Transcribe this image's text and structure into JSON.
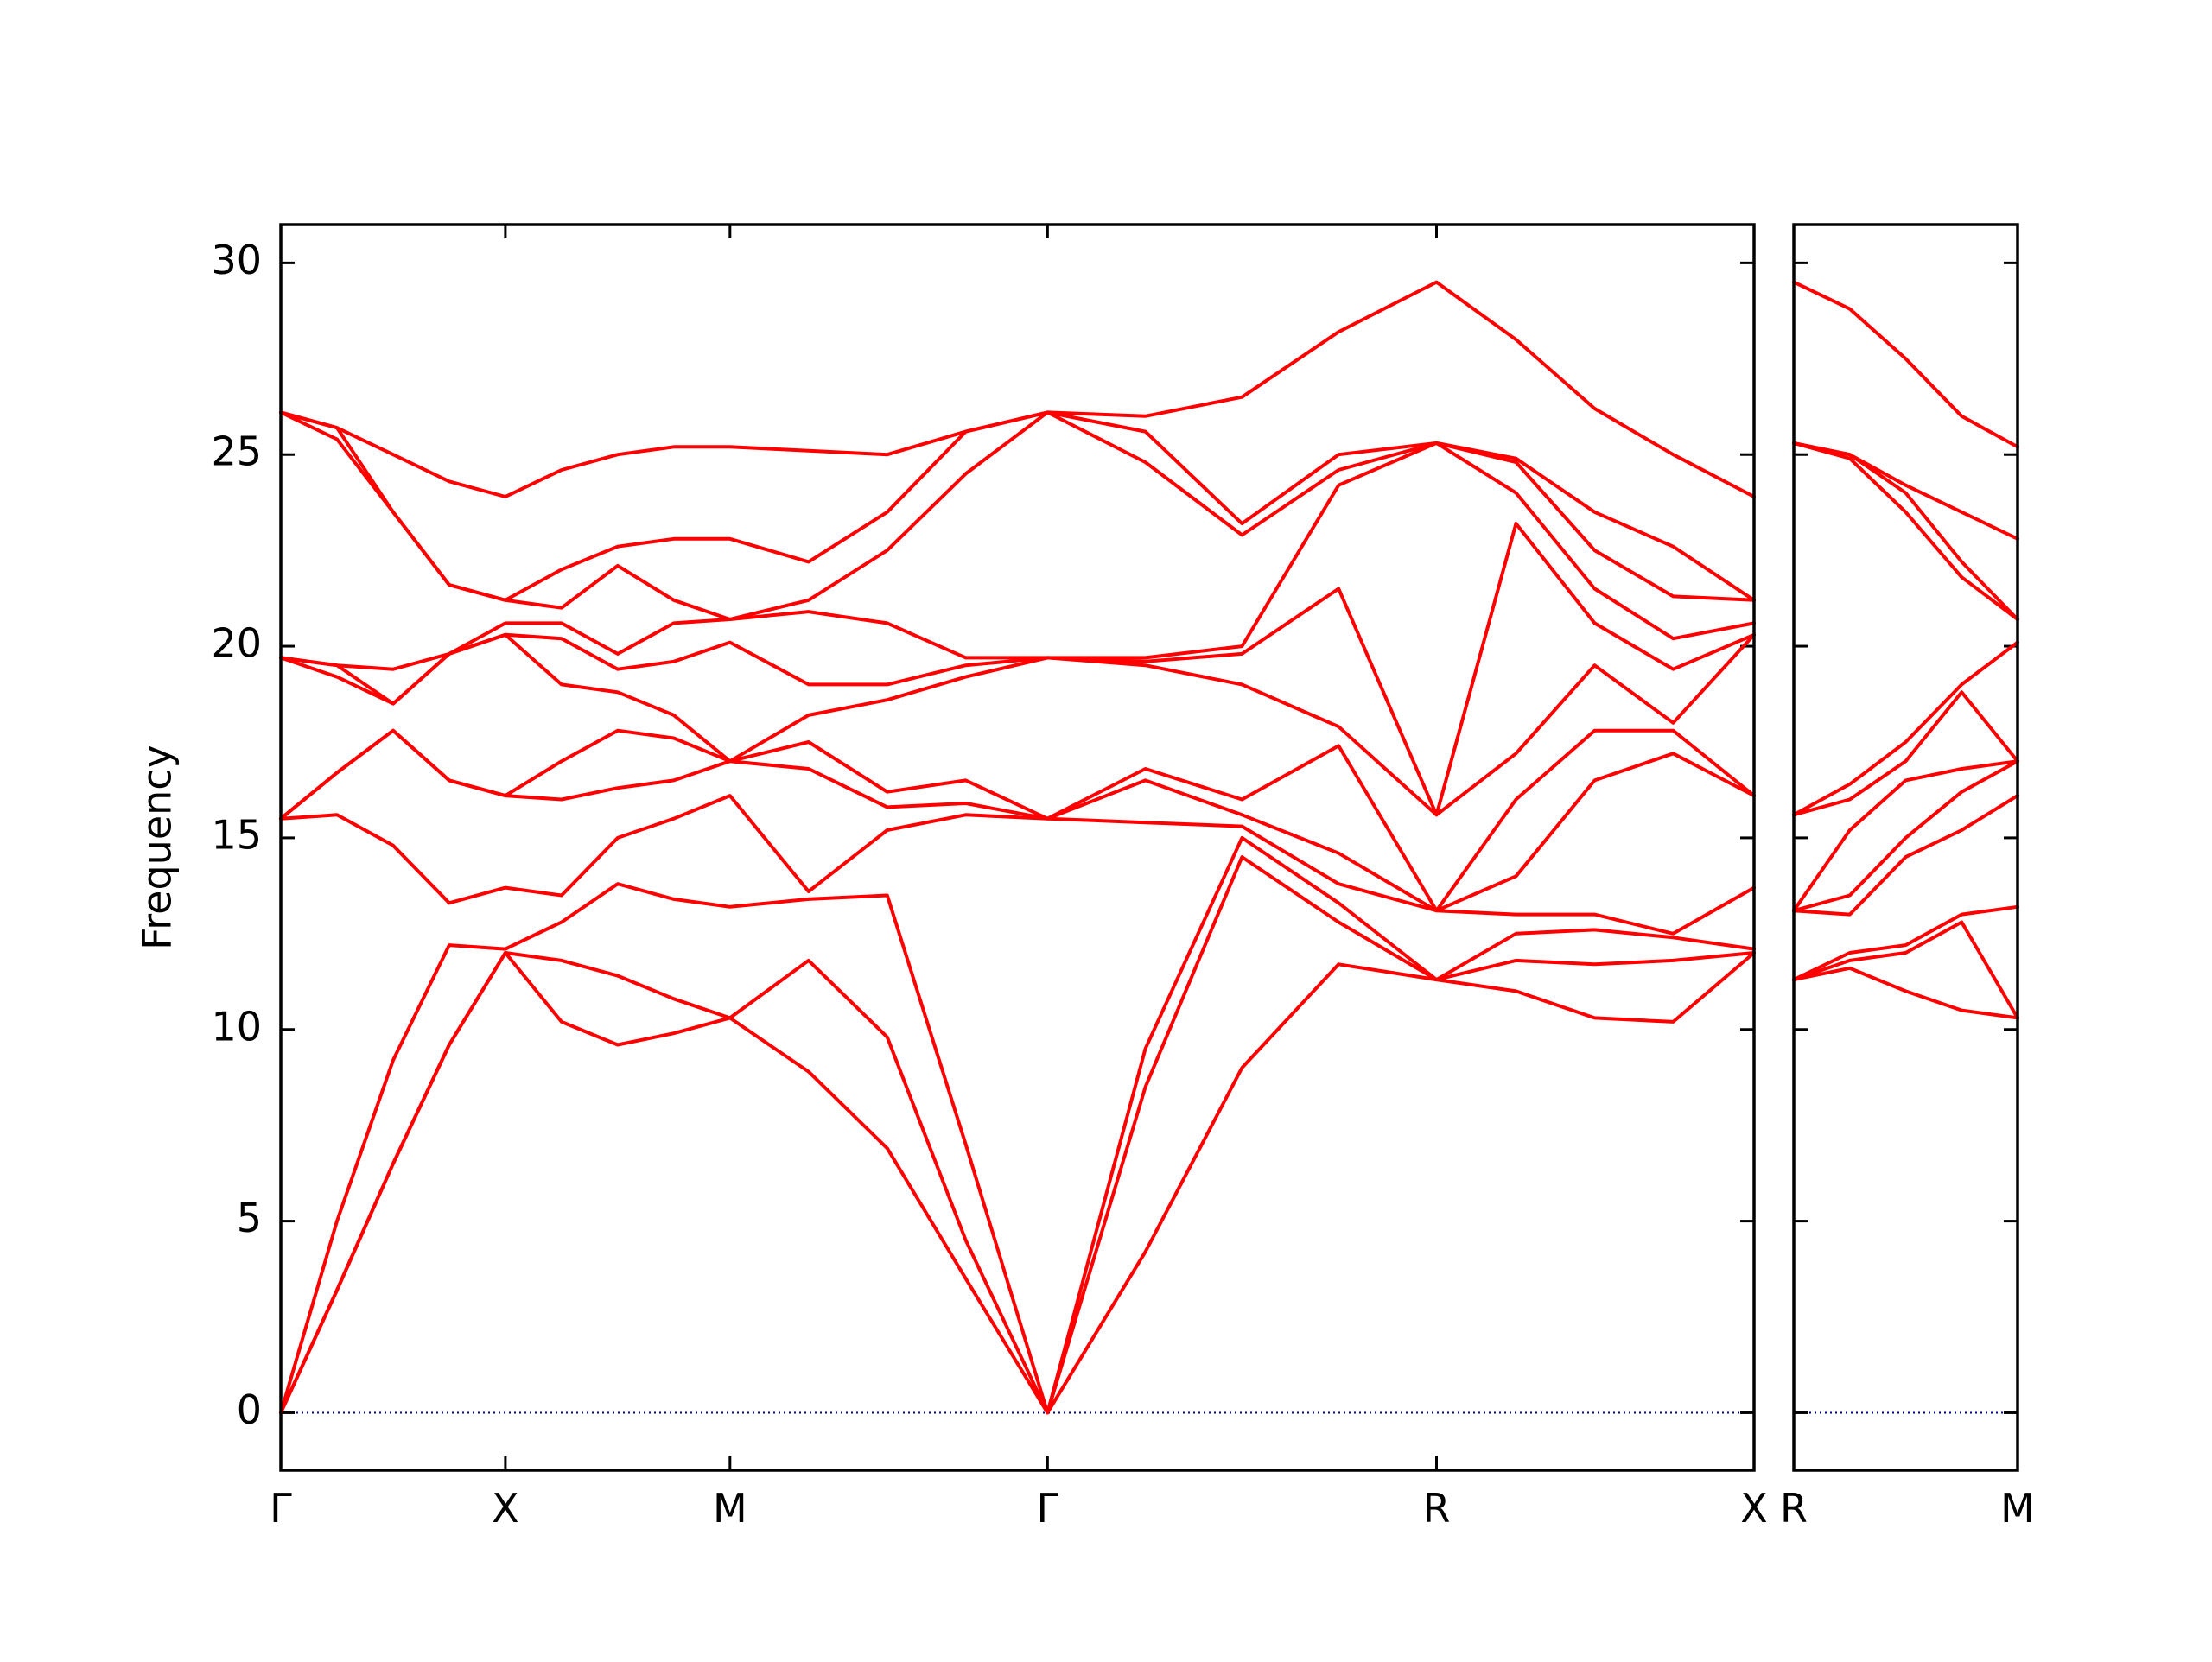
{
  "chart_data": [
    {
      "type": "line",
      "y_label": "Frequency",
      "color": "#ff0000",
      "xlim": [
        0,
        6.56
      ],
      "ylim": [
        -1.5,
        31
      ],
      "xticks": [
        {
          "value": 0,
          "label": "Γ"
        },
        {
          "value": 1,
          "label": "X"
        },
        {
          "value": 2,
          "label": "M"
        },
        {
          "value": 3.414,
          "label": "Γ"
        },
        {
          "value": 5.146,
          "label": "R"
        },
        {
          "value": 6.56,
          "label": "X"
        }
      ],
      "yticks": [
        0,
        5,
        10,
        15,
        20,
        25,
        30
      ],
      "x": [
        0,
        0.25,
        0.5,
        0.75,
        1,
        1.25,
        1.5,
        1.75,
        2,
        2.35,
        2.7,
        3.05,
        3.414,
        3.85,
        4.28,
        4.71,
        5.146,
        5.5,
        5.85,
        6.2,
        6.56
      ],
      "series": [
        {
          "values": [
            0,
            3.2,
            6.5,
            9.6,
            12.0,
            10.2,
            9.6,
            9.9,
            10.3,
            8.9,
            6.9,
            3.5,
            0,
            4.2,
            9.0,
            11.7,
            11.3,
            11.0,
            10.3,
            10.2,
            12.0
          ]
        },
        {
          "values": [
            0,
            3.2,
            6.5,
            9.6,
            12.0,
            11.8,
            11.4,
            10.8,
            10.3,
            11.8,
            9.8,
            4.5,
            0,
            8.5,
            14.5,
            12.8,
            11.3,
            11.8,
            11.7,
            11.8,
            12.0
          ]
        },
        {
          "values": [
            0,
            5.0,
            9.2,
            12.2,
            12.1,
            12.8,
            13.8,
            13.4,
            13.2,
            13.4,
            13.5,
            7.0,
            0,
            9.5,
            15.0,
            13.3,
            11.3,
            12.5,
            12.6,
            12.4,
            12.1
          ]
        },
        {
          "values": [
            15.5,
            15.6,
            14.8,
            13.3,
            13.7,
            13.5,
            15.0,
            15.5,
            16.1,
            13.6,
            15.2,
            15.6,
            15.5,
            15.4,
            15.3,
            13.8,
            13.1,
            13.0,
            13.0,
            12.5,
            13.7
          ]
        },
        {
          "values": [
            15.5,
            16.7,
            17.8,
            16.5,
            16.1,
            16.0,
            16.3,
            16.5,
            17.0,
            16.8,
            15.8,
            15.9,
            15.5,
            16.5,
            15.6,
            14.6,
            13.1,
            14.0,
            16.5,
            17.2,
            16.1
          ]
        },
        {
          "values": [
            15.5,
            16.7,
            17.8,
            16.5,
            16.1,
            17.0,
            17.8,
            17.6,
            17.0,
            17.5,
            16.2,
            16.5,
            15.5,
            16.8,
            16.0,
            17.4,
            13.1,
            16.0,
            17.8,
            17.8,
            16.1
          ]
        },
        {
          "values": [
            19.7,
            19.2,
            18.5,
            19.8,
            20.3,
            19.0,
            18.8,
            18.2,
            17.0,
            18.2,
            18.6,
            19.2,
            19.7,
            19.5,
            19.0,
            17.9,
            15.6,
            17.2,
            19.5,
            18.0,
            20.3
          ]
        },
        {
          "values": [
            19.7,
            19.5,
            18.5,
            19.8,
            20.3,
            20.2,
            19.4,
            19.6,
            20.1,
            19.0,
            19.0,
            19.5,
            19.7,
            19.6,
            19.8,
            21.5,
            15.6,
            23.2,
            20.6,
            19.4,
            20.3
          ]
        },
        {
          "values": [
            19.7,
            19.5,
            19.4,
            19.8,
            20.6,
            20.6,
            19.8,
            20.6,
            20.7,
            20.9,
            20.6,
            19.7,
            19.7,
            19.7,
            20.0,
            24.2,
            25.3,
            24.0,
            21.5,
            20.2,
            20.6
          ]
        },
        {
          "values": [
            26.1,
            25.4,
            23.5,
            21.6,
            21.2,
            21.0,
            22.1,
            21.2,
            20.7,
            21.2,
            22.5,
            24.5,
            26.1,
            24.8,
            22.9,
            24.6,
            25.3,
            24.8,
            22.5,
            21.3,
            21.2
          ]
        },
        {
          "values": [
            26.1,
            25.7,
            23.5,
            21.6,
            21.2,
            22.0,
            22.6,
            22.8,
            22.8,
            22.2,
            23.5,
            25.6,
            26.1,
            25.6,
            23.2,
            25.0,
            25.3,
            24.9,
            23.5,
            22.6,
            21.2
          ]
        },
        {
          "values": [
            26.1,
            25.7,
            25.0,
            24.3,
            23.9,
            24.6,
            25.0,
            25.2,
            25.2,
            25.1,
            25.0,
            25.6,
            26.1,
            26.0,
            26.5,
            28.2,
            29.5,
            28.0,
            26.2,
            25.0,
            23.9
          ]
        }
      ]
    },
    {
      "type": "line",
      "color": "#ff0000",
      "xlim": [
        0,
        1
      ],
      "ylim": [
        -1.5,
        31
      ],
      "xticks": [
        {
          "value": 0,
          "label": "R"
        },
        {
          "value": 1,
          "label": "M"
        }
      ],
      "yticks": [
        0,
        5,
        10,
        15,
        20,
        25,
        30
      ],
      "x": [
        0,
        0.25,
        0.5,
        0.75,
        1
      ],
      "series": [
        {
          "values": [
            11.3,
            11.6,
            11.0,
            10.5,
            10.3
          ]
        },
        {
          "values": [
            11.3,
            11.8,
            12.0,
            12.8,
            10.3
          ]
        },
        {
          "values": [
            11.3,
            12.0,
            12.2,
            13.0,
            13.2
          ]
        },
        {
          "values": [
            13.1,
            13.0,
            14.5,
            15.2,
            16.1
          ]
        },
        {
          "values": [
            13.1,
            13.5,
            15.0,
            16.2,
            17.0
          ]
        },
        {
          "values": [
            13.1,
            15.2,
            16.5,
            16.8,
            17.0
          ]
        },
        {
          "values": [
            15.6,
            16.0,
            17.0,
            18.8,
            17.0
          ]
        },
        {
          "values": [
            15.6,
            16.4,
            17.5,
            19.0,
            20.1
          ]
        },
        {
          "values": [
            25.3,
            24.9,
            23.5,
            21.8,
            20.7
          ]
        },
        {
          "values": [
            25.3,
            25.0,
            24.0,
            22.2,
            20.7
          ]
        },
        {
          "values": [
            25.3,
            25.0,
            24.2,
            23.5,
            22.8
          ]
        },
        {
          "values": [
            29.5,
            28.8,
            27.5,
            26.0,
            25.2
          ]
        }
      ]
    }
  ]
}
